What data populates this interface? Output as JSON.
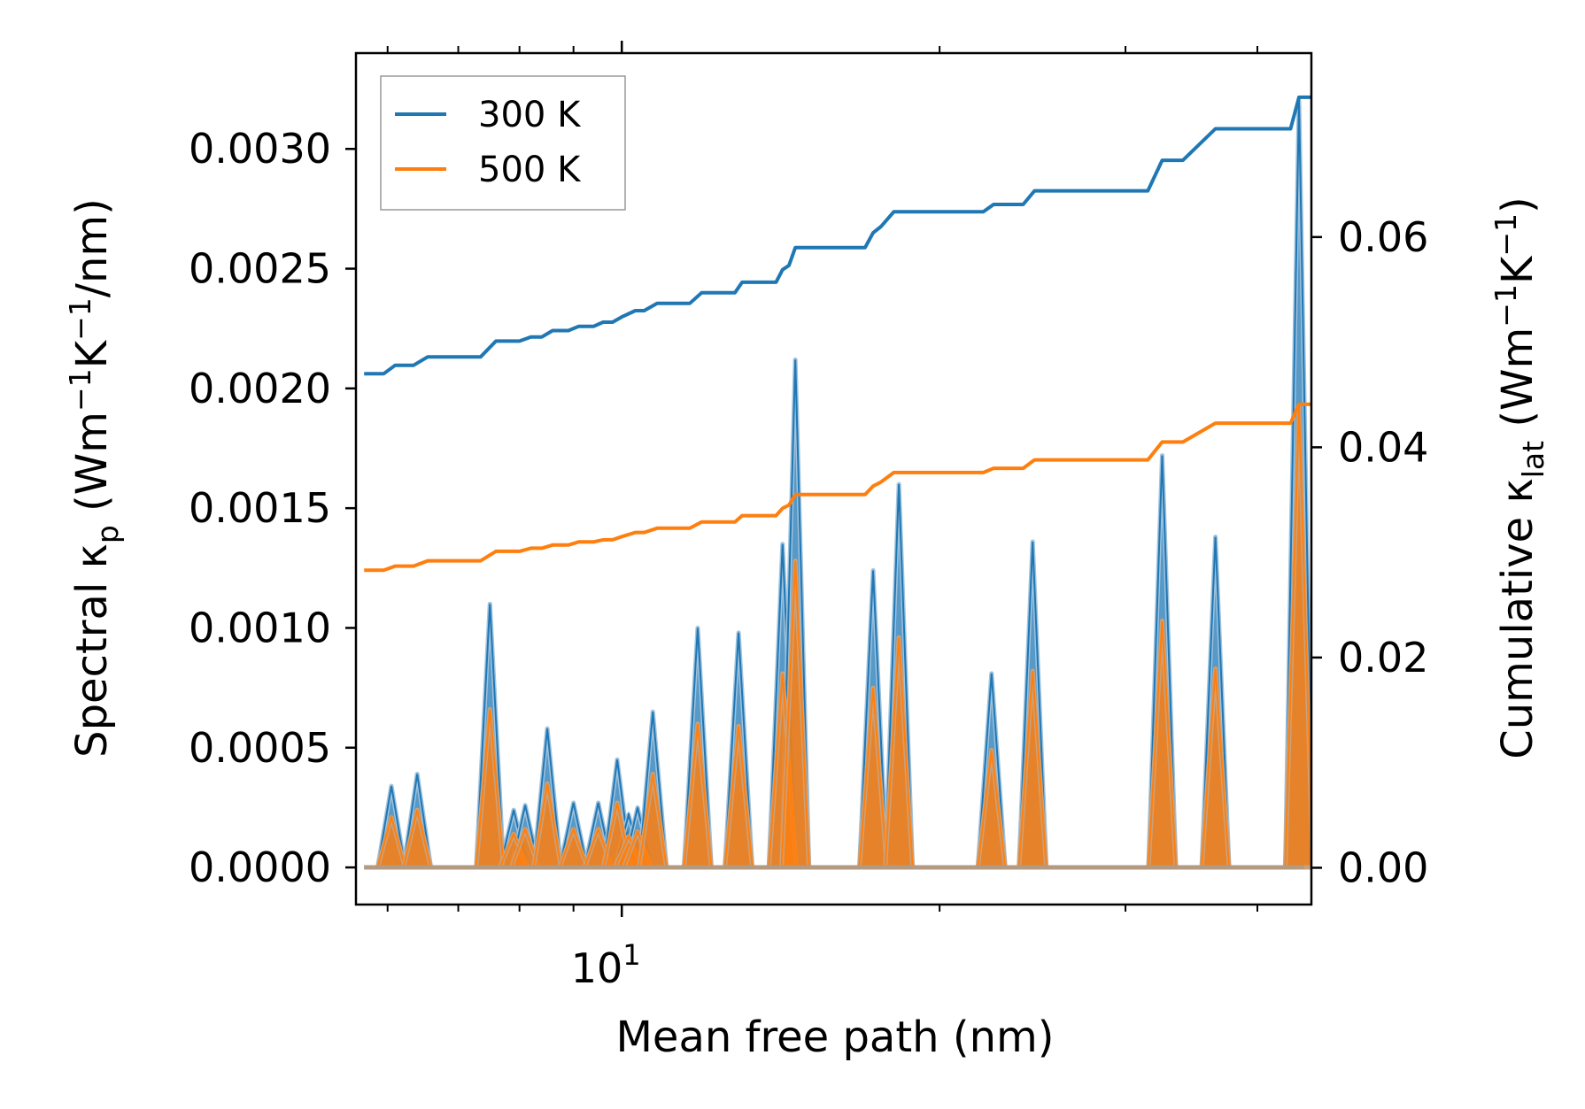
{
  "chart_data": {
    "type": "line",
    "title": "",
    "xlabel": "Mean free path (nm)",
    "xscale": "log",
    "xlim": [
      5.6,
      45
    ],
    "x_ticks": [
      {
        "value": 10,
        "base": "10",
        "exp": "1"
      }
    ],
    "x_minor_ticks": [
      6,
      7,
      8,
      9,
      20,
      30,
      40
    ],
    "ylabel_left": {
      "base": "Spectral κ",
      "sub": "p",
      "units_open": " (Wm",
      "exp1": "−1",
      "mid": "K",
      "exp2": "−1",
      "units_close": "/nm)"
    },
    "ylabel_right": {
      "base": "Cumulative κ",
      "sub": "lat",
      "units_open": " (Wm",
      "exp1": "−1",
      "mid": "K",
      "exp2": "−1",
      "units_close": ")"
    },
    "ylim_left": [
      -0.000155,
      0.0034
    ],
    "ylim_right": [
      -0.0035,
      0.0775
    ],
    "left_ticks": [
      {
        "value": 0.0,
        "label": "0.0000"
      },
      {
        "value": 0.0005,
        "label": "0.0005"
      },
      {
        "value": 0.001,
        "label": "0.0010"
      },
      {
        "value": 0.0015,
        "label": "0.0015"
      },
      {
        "value": 0.002,
        "label": "0.0020"
      },
      {
        "value": 0.0025,
        "label": "0.0025"
      },
      {
        "value": 0.003,
        "label": "0.0030"
      }
    ],
    "right_ticks": [
      {
        "value": 0.0,
        "label": "0.00"
      },
      {
        "value": 0.02,
        "label": "0.02"
      },
      {
        "value": 0.04,
        "label": "0.04"
      },
      {
        "value": 0.06,
        "label": "0.06"
      }
    ],
    "legend": {
      "location": "upper left",
      "entries": [
        {
          "label": "300 K",
          "color": "#1f77b4"
        },
        {
          "label": "500 K",
          "color": "#ff7f0e"
        }
      ]
    },
    "spectral_axis": "left",
    "cumulative_axis": "right",
    "peaks": [
      {
        "x": 6.05,
        "v300": 0.00034,
        "v500": 0.00021
      },
      {
        "x": 6.4,
        "v300": 0.00039,
        "v500": 0.00024
      },
      {
        "x": 7.5,
        "v300": 0.0011,
        "v500": 0.00066
      },
      {
        "x": 7.9,
        "v300": 0.00024,
        "v500": 0.00014
      },
      {
        "x": 8.1,
        "v300": 0.00026,
        "v500": 0.00016
      },
      {
        "x": 8.5,
        "v300": 0.00058,
        "v500": 0.00035
      },
      {
        "x": 9.0,
        "v300": 0.00027,
        "v500": 0.00016
      },
      {
        "x": 9.5,
        "v300": 0.00027,
        "v500": 0.00016
      },
      {
        "x": 9.9,
        "v300": 0.00045,
        "v500": 0.00027
      },
      {
        "x": 10.15,
        "v300": 0.00022,
        "v500": 0.00013
      },
      {
        "x": 10.35,
        "v300": 0.00025,
        "v500": 0.00015
      },
      {
        "x": 10.7,
        "v300": 0.00065,
        "v500": 0.00039
      },
      {
        "x": 11.8,
        "v300": 0.001,
        "v500": 0.0006
      },
      {
        "x": 12.9,
        "v300": 0.00098,
        "v500": 0.00059
      },
      {
        "x": 14.2,
        "v300": 0.00135,
        "v500": 0.00081
      },
      {
        "x": 14.6,
        "v300": 0.00212,
        "v500": 0.00128
      },
      {
        "x": 17.3,
        "v300": 0.00124,
        "v500": 0.00075
      },
      {
        "x": 18.3,
        "v300": 0.0016,
        "v500": 0.00096
      },
      {
        "x": 22.4,
        "v300": 0.00081,
        "v500": 0.00049
      },
      {
        "x": 24.5,
        "v300": 0.00136,
        "v500": 0.00082
      },
      {
        "x": 32.5,
        "v300": 0.00172,
        "v500": 0.00103
      },
      {
        "x": 36.5,
        "v300": 0.00138,
        "v500": 0.00083
      },
      {
        "x": 43.8,
        "v300": 0.0032,
        "v500": 0.00193
      }
    ],
    "series": [
      {
        "name": "300 K",
        "color": "#1f77b4",
        "cumulative": [
          [
            5.7,
            0.047
          ],
          [
            5.95,
            0.047
          ],
          [
            6.1,
            0.0478
          ],
          [
            6.35,
            0.0478
          ],
          [
            6.55,
            0.0486
          ],
          [
            7.35,
            0.0486
          ],
          [
            7.6,
            0.0501
          ],
          [
            8.0,
            0.0501
          ],
          [
            8.2,
            0.0505
          ],
          [
            8.4,
            0.0505
          ],
          [
            8.6,
            0.0511
          ],
          [
            8.9,
            0.0511
          ],
          [
            9.1,
            0.0515
          ],
          [
            9.4,
            0.0515
          ],
          [
            9.6,
            0.0519
          ],
          [
            9.8,
            0.0519
          ],
          [
            10.0,
            0.0524
          ],
          [
            10.3,
            0.053
          ],
          [
            10.5,
            0.053
          ],
          [
            10.8,
            0.0537
          ],
          [
            11.6,
            0.0537
          ],
          [
            11.9,
            0.0547
          ],
          [
            12.8,
            0.0547
          ],
          [
            13.0,
            0.0557
          ],
          [
            14.0,
            0.0557
          ],
          [
            14.2,
            0.0569
          ],
          [
            14.4,
            0.0573
          ],
          [
            14.6,
            0.059
          ],
          [
            17.0,
            0.059
          ],
          [
            17.3,
            0.0604
          ],
          [
            17.6,
            0.061
          ],
          [
            18.1,
            0.0624
          ],
          [
            22.0,
            0.0624
          ],
          [
            22.5,
            0.0631
          ],
          [
            24.0,
            0.0631
          ],
          [
            24.6,
            0.0644
          ],
          [
            31.5,
            0.0644
          ],
          [
            32.5,
            0.0673
          ],
          [
            34.0,
            0.0673
          ],
          [
            36.5,
            0.0703
          ],
          [
            43.0,
            0.0703
          ],
          [
            43.8,
            0.0733
          ],
          [
            45.0,
            0.0733
          ]
        ]
      },
      {
        "name": "500 K",
        "color": "#ff7f0e",
        "cumulative": [
          [
            5.7,
            0.0283
          ],
          [
            5.95,
            0.0283
          ],
          [
            6.1,
            0.0287
          ],
          [
            6.35,
            0.0287
          ],
          [
            6.55,
            0.0292
          ],
          [
            7.35,
            0.0292
          ],
          [
            7.6,
            0.0301
          ],
          [
            8.0,
            0.0301
          ],
          [
            8.2,
            0.0304
          ],
          [
            8.4,
            0.0304
          ],
          [
            8.6,
            0.0307
          ],
          [
            8.9,
            0.0307
          ],
          [
            9.1,
            0.031
          ],
          [
            9.4,
            0.031
          ],
          [
            9.6,
            0.0312
          ],
          [
            9.8,
            0.0312
          ],
          [
            10.0,
            0.0315
          ],
          [
            10.3,
            0.0319
          ],
          [
            10.5,
            0.0319
          ],
          [
            10.8,
            0.0323
          ],
          [
            11.6,
            0.0323
          ],
          [
            11.9,
            0.0329
          ],
          [
            12.8,
            0.0329
          ],
          [
            13.0,
            0.0335
          ],
          [
            14.0,
            0.0335
          ],
          [
            14.2,
            0.0342
          ],
          [
            14.4,
            0.0345
          ],
          [
            14.6,
            0.0355
          ],
          [
            17.0,
            0.0355
          ],
          [
            17.3,
            0.0363
          ],
          [
            17.6,
            0.0367
          ],
          [
            18.1,
            0.0376
          ],
          [
            22.0,
            0.0376
          ],
          [
            22.5,
            0.038
          ],
          [
            24.0,
            0.038
          ],
          [
            24.6,
            0.0388
          ],
          [
            31.5,
            0.0388
          ],
          [
            32.5,
            0.0405
          ],
          [
            34.0,
            0.0405
          ],
          [
            36.5,
            0.0423
          ],
          [
            43.0,
            0.0423
          ],
          [
            43.8,
            0.0441
          ],
          [
            45.0,
            0.0441
          ]
        ]
      }
    ]
  }
}
